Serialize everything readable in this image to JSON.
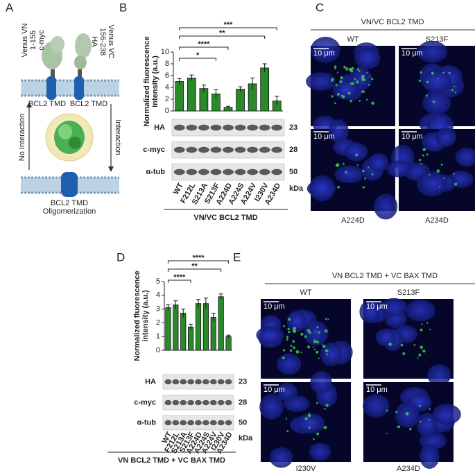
{
  "panel_a": {
    "label": "A",
    "vn": [
      "Venus VN",
      "1-155",
      "c-myc"
    ],
    "vc": [
      "Venus VC",
      "156-238",
      "HA"
    ],
    "tmd": [
      "BCL2 TMD",
      "BCL2 TMD"
    ],
    "no_interaction": "No Interaction",
    "interaction": "Interaction",
    "oligomer": [
      "BCL2 TMD",
      "Oligomerization"
    ]
  },
  "chart_data": [
    {
      "type": "bar",
      "label": "B",
      "ylabel": [
        "Normalized fluorescence",
        "intensity (a.u.)"
      ],
      "categories": [
        "WT",
        "F212L",
        "S213A",
        "S213F",
        "A224D",
        "A224S",
        "A224V",
        "I230V",
        "A234D"
      ],
      "values": [
        5.0,
        5.6,
        3.8,
        2.9,
        0.6,
        3.7,
        4.6,
        7.3,
        1.7
      ],
      "errors": [
        0.5,
        0.5,
        0.6,
        0.7,
        0.2,
        0.4,
        1.0,
        0.7,
        0.8
      ],
      "color": "#2a8a2a",
      "ylim": [
        0,
        10
      ],
      "yticks": [
        0,
        2,
        4,
        6,
        8,
        10
      ],
      "significance": [
        {
          "label": "*",
          "from": 0,
          "to": 3
        },
        {
          "label": "****",
          "from": 0,
          "to": 4
        },
        {
          "label": "**",
          "from": 0,
          "to": 7
        },
        {
          "label": "***",
          "from": 0,
          "to": 8
        }
      ],
      "blot_rows": [
        "HA",
        "c-myc",
        "α-tub"
      ],
      "kda": [
        23,
        28,
        50
      ],
      "kda_unit": "kDa",
      "group_label": "VN/VC BCL2 TMD"
    },
    {
      "type": "bar",
      "label": "D",
      "ylabel": [
        "Normalized fluorescence",
        "intensity (a.u.)"
      ],
      "categories": [
        "WT",
        "F212L",
        "S213A",
        "S213F",
        "A224D",
        "A224S",
        "A224V",
        "I230V",
        "A234D"
      ],
      "values": [
        3.1,
        3.3,
        2.7,
        1.7,
        3.4,
        3.4,
        2.4,
        3.9,
        1.0
      ],
      "errors": [
        0.2,
        0.3,
        0.3,
        0.2,
        0.3,
        0.4,
        0.3,
        0.2,
        0.1
      ],
      "color": "#2a8a2a",
      "ylim": [
        0,
        5
      ],
      "yticks": [
        0,
        1,
        2,
        3,
        4,
        5
      ],
      "significance": [
        {
          "label": "****",
          "from": 0,
          "to": 3
        },
        {
          "label": "**",
          "from": 0,
          "to": 7
        },
        {
          "label": "****",
          "from": 0,
          "to": 8
        }
      ],
      "blot_rows": [
        "HA",
        "c-myc",
        "α-tub"
      ],
      "kda": [
        23,
        28,
        50
      ],
      "kda_unit": "kDa",
      "group_label": "VN BCL2 TMD + VC BAX TMD"
    }
  ],
  "panel_c": {
    "label": "C",
    "title": "VN/VC BCL2 TMD",
    "top": [
      "WT",
      "S213F"
    ],
    "bottom": [
      "A224D",
      "A234D"
    ],
    "scale_bars": [
      "10 μm",
      "10 μm",
      "10 μm",
      "10 μm"
    ]
  },
  "panel_e": {
    "label": "E",
    "title": "VN BCL2 TMD + VC BAX TMD",
    "top": [
      "WT",
      "S213F"
    ],
    "bottom": [
      "I230V",
      "A234D"
    ],
    "scale_bars": [
      "10 μm",
      "10 μm",
      "10 μm",
      "10 μm"
    ]
  }
}
